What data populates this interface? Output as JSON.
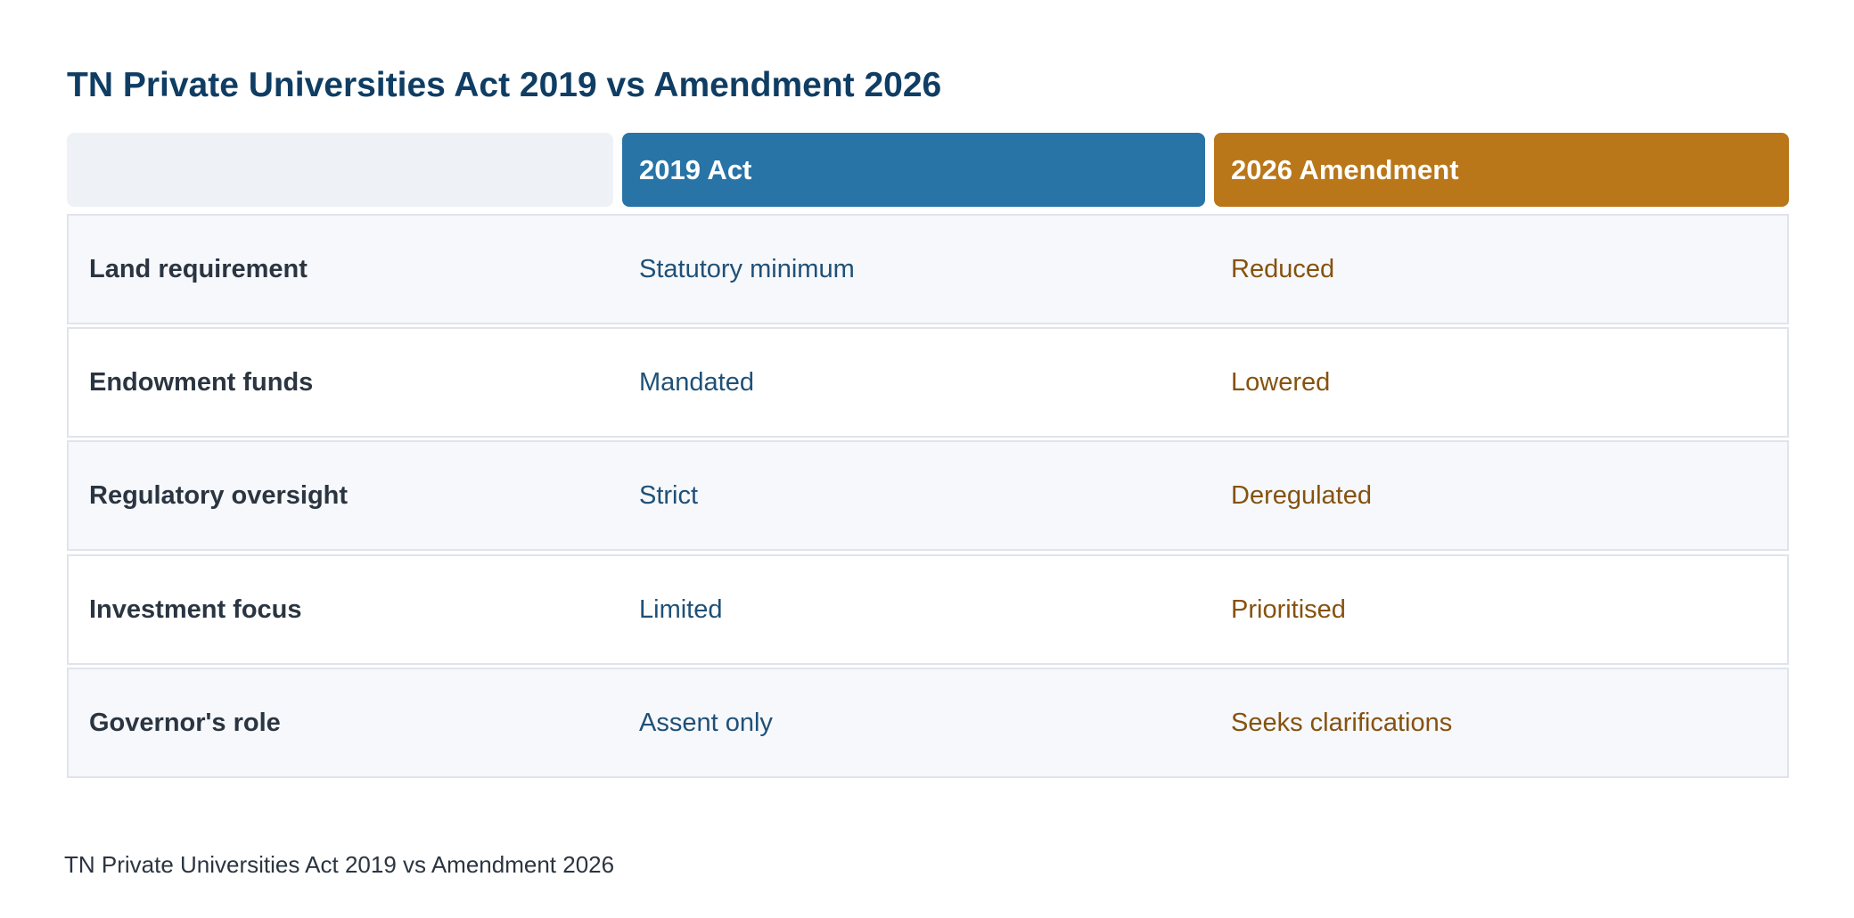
{
  "title": "TN Private Universities Act 2019 vs Amendment 2026",
  "columns": {
    "act_2019": "2019 Act",
    "amendment_2026": "2026 Amendment"
  },
  "rows": [
    {
      "label": "Land requirement",
      "act_2019": "Statutory minimum",
      "amendment_2026": "Reduced"
    },
    {
      "label": "Endowment funds",
      "act_2019": "Mandated",
      "amendment_2026": "Lowered"
    },
    {
      "label": "Regulatory oversight",
      "act_2019": "Strict",
      "amendment_2026": "Deregulated"
    },
    {
      "label": "Investment focus",
      "act_2019": "Limited",
      "amendment_2026": "Prioritised"
    },
    {
      "label": "Governor's role",
      "act_2019": "Assent only",
      "amendment_2026": "Seeks clarifications"
    }
  ],
  "caption": "TN Private Universities Act 2019 vs Amendment 2026",
  "colors": {
    "title": "#0f3d63",
    "header_2019": "#2874a6",
    "header_2026": "#b9771a",
    "text_2019": "#1f5077",
    "text_2026": "#86520f"
  }
}
